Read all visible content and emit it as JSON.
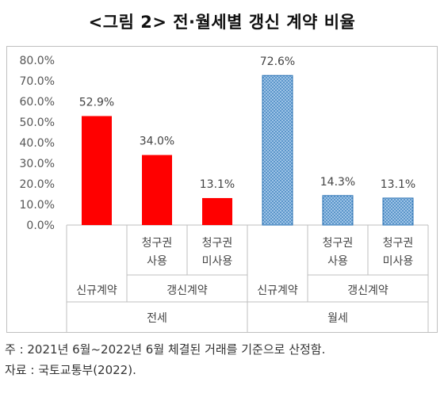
{
  "title": "<그림 2> 전·월세별 갱신 계약 비율",
  "chart_data": {
    "type": "bar",
    "ylim": [
      0,
      80
    ],
    "yticks": [
      "0.0%",
      "10.0%",
      "20.0%",
      "30.0%",
      "40.0%",
      "50.0%",
      "60.0%",
      "70.0%",
      "80.0%"
    ],
    "grid": false,
    "groups": [
      {
        "name": "전세",
        "style": "solid-red",
        "bars": [
          {
            "sub": "신규계약",
            "detail": "",
            "value": 52.9,
            "label": "52.9%"
          },
          {
            "sub": "갱신계약",
            "detail": "청구권\n사용",
            "value": 34.0,
            "label": "34.0%"
          },
          {
            "sub": "갱신계약",
            "detail": "청구권\n미사용",
            "value": 13.1,
            "label": "13.1%"
          }
        ]
      },
      {
        "name": "월세",
        "style": "dotted-blue",
        "bars": [
          {
            "sub": "신규계약",
            "detail": "",
            "value": 72.6,
            "label": "72.6%"
          },
          {
            "sub": "갱신계약",
            "detail": "청구권\n사용",
            "value": 14.3,
            "label": "14.3%"
          },
          {
            "sub": "갱신계약",
            "detail": "청구권\n미사용",
            "value": 13.1,
            "label": "13.1%"
          }
        ]
      }
    ],
    "colors": {
      "red": "#ff0000",
      "blue_fill": "#9dc3e6",
      "blue_dot": "#2e75b6"
    }
  },
  "notes": [
    "주 : 2021년 6월~2022년 6월 체결된 거래를 기준으로 산정함.",
    "자료 : 국토교통부(2022)."
  ]
}
